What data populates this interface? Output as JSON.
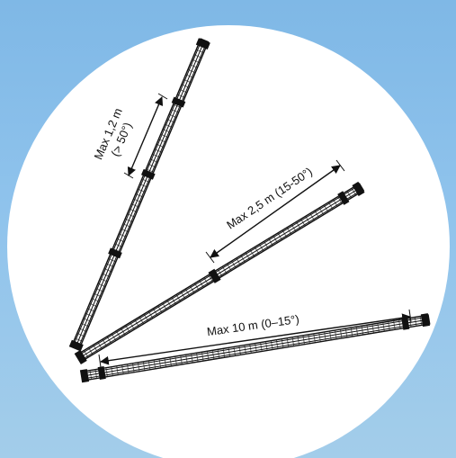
{
  "colors": {
    "background_top": "#7fb8e6",
    "background_bottom": "#a3cdea",
    "circle": "#ffffff",
    "ink": "#111111"
  },
  "diagram": {
    "rails": [
      {
        "id": "steep",
        "label_line1": "Max 1,2 m",
        "label_line2": "(> 50°)"
      },
      {
        "id": "medium",
        "label_line1": "Max 2,5 m (15-50°)"
      },
      {
        "id": "low",
        "label_line1": "Max 10 m (0–15°)"
      }
    ]
  }
}
